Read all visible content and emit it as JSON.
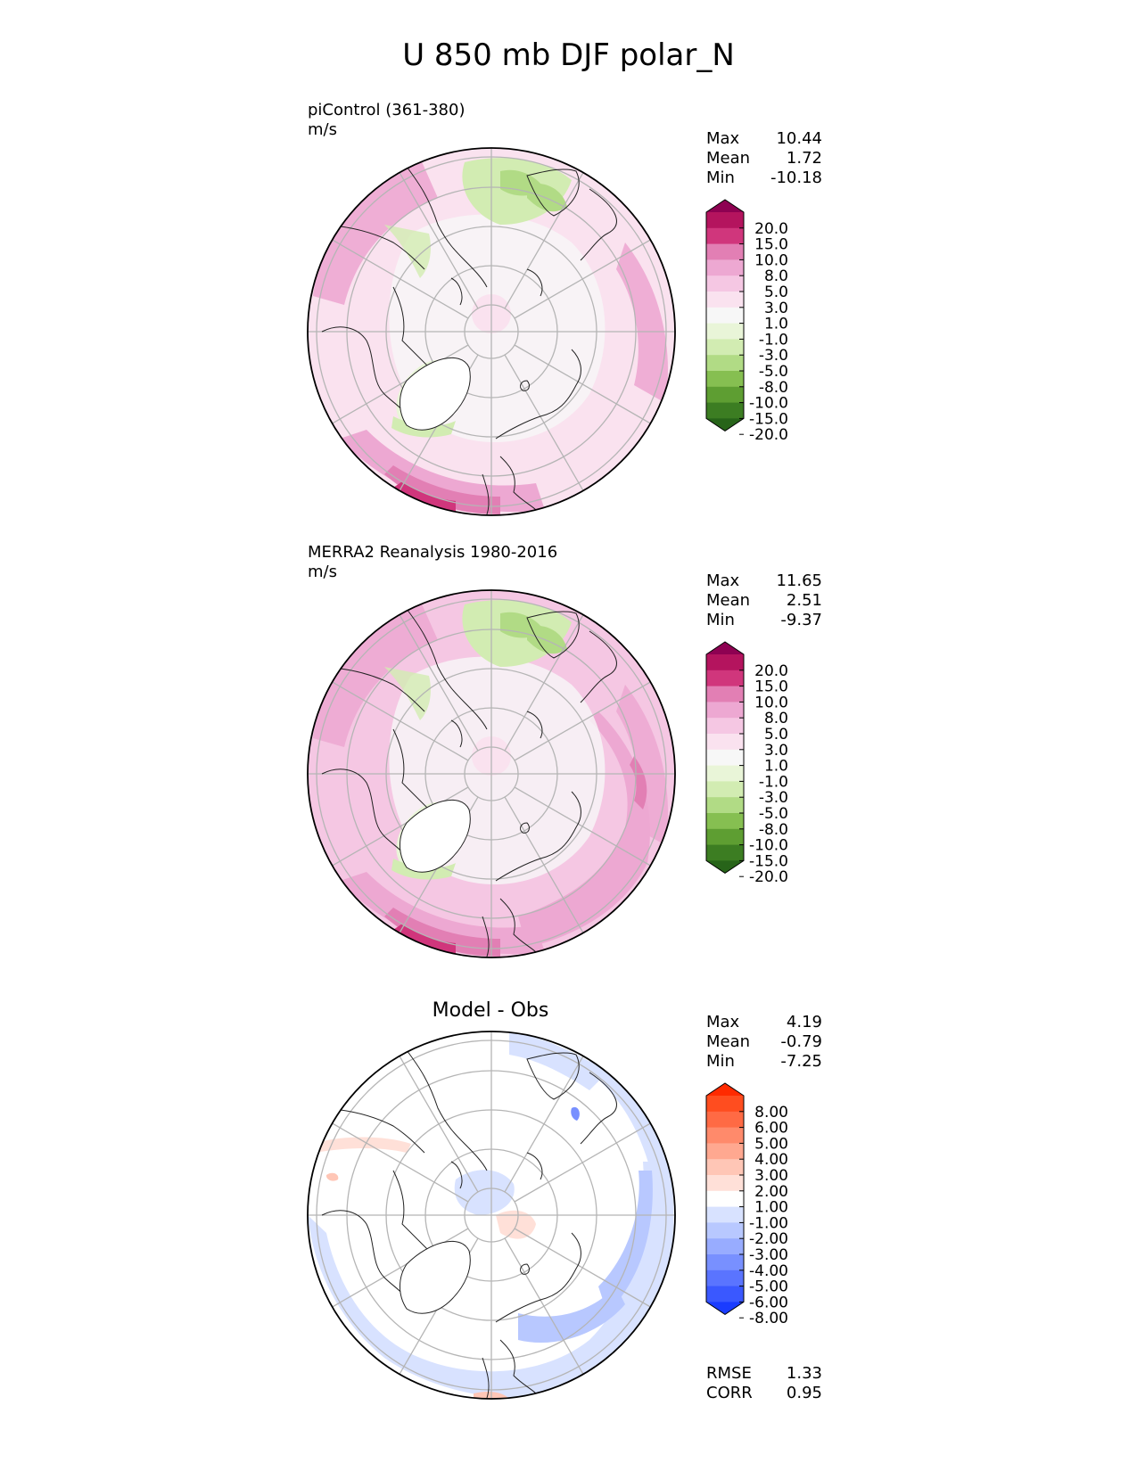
{
  "title": "U 850 mb DJF polar_N",
  "panels": [
    {
      "title_lines": [
        "piControl (361-380)",
        "m/s"
      ],
      "stats": [
        {
          "label": "Max",
          "value": "10.44"
        },
        {
          "label": "Mean",
          "value": "1.72"
        },
        {
          "label": "Min",
          "value": "-10.18"
        }
      ],
      "colorbar": {
        "levels": [
          "20.0",
          "15.0",
          "10.0",
          "8.0",
          "5.0",
          "3.0",
          "1.0",
          "-1.0",
          "-3.0",
          "-5.0",
          "-8.0",
          "-10.0",
          "-15.0",
          "-20.0"
        ],
        "colors": [
          "#8e0152",
          "#b4145e",
          "#d0367c",
          "#e27fb4",
          "#eda8d2",
          "#f5c7e3",
          "#fae2ef",
          "#f7f7f7",
          "#e9f5d8",
          "#d2ecb2",
          "#b1db85",
          "#86bf51",
          "#5e9e32",
          "#3c7d22",
          "#276419"
        ]
      },
      "extra_stats": []
    },
    {
      "title_lines": [
        "MERRA2 Reanalysis 1980-2016",
        "m/s"
      ],
      "stats": [
        {
          "label": "Max",
          "value": "11.65"
        },
        {
          "label": "Mean",
          "value": "2.51"
        },
        {
          "label": "Min",
          "value": "-9.37"
        }
      ],
      "colorbar": {
        "levels": [
          "20.0",
          "15.0",
          "10.0",
          "8.0",
          "5.0",
          "3.0",
          "1.0",
          "-1.0",
          "-3.0",
          "-5.0",
          "-8.0",
          "-10.0",
          "-15.0",
          "-20.0"
        ],
        "colors": [
          "#8e0152",
          "#b4145e",
          "#d0367c",
          "#e27fb4",
          "#eda8d2",
          "#f5c7e3",
          "#fae2ef",
          "#f7f7f7",
          "#e9f5d8",
          "#d2ecb2",
          "#b1db85",
          "#86bf51",
          "#5e9e32",
          "#3c7d22",
          "#276419"
        ]
      },
      "extra_stats": []
    },
    {
      "title_center": "Model - Obs",
      "stats": [
        {
          "label": "Max",
          "value": "4.19"
        },
        {
          "label": "Mean",
          "value": "-0.79"
        },
        {
          "label": "Min",
          "value": "-7.25"
        }
      ],
      "colorbar": {
        "levels": [
          "8.00",
          "6.00",
          "5.00",
          "4.00",
          "3.00",
          "2.00",
          "1.00",
          "-1.00",
          "-2.00",
          "-3.00",
          "-4.00",
          "-5.00",
          "-6.00",
          "-8.00"
        ],
        "colors": [
          "#ff2a00",
          "#ff4d1f",
          "#ff6a44",
          "#ff8a6b",
          "#ffa890",
          "#ffc6b6",
          "#ffe0d8",
          "#ffffff",
          "#d8e2ff",
          "#b8c8ff",
          "#98acff",
          "#7890ff",
          "#5a74ff",
          "#3a58ff",
          "#1a3cff"
        ]
      },
      "extra_stats": [
        {
          "label": "RMSE",
          "value": "1.33"
        },
        {
          "label": "CORR",
          "value": "0.95"
        }
      ]
    }
  ]
}
